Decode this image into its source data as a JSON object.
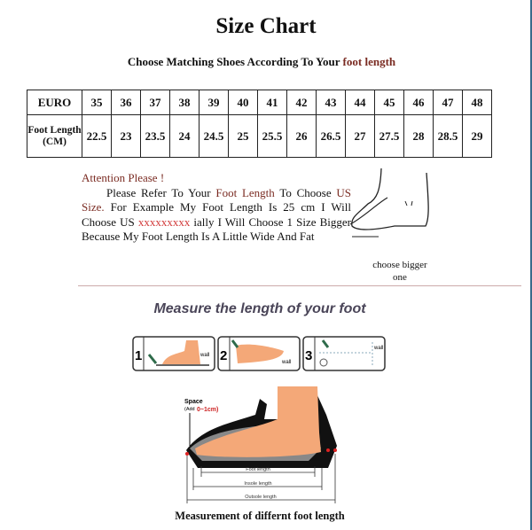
{
  "title": "Size Chart",
  "subtitle": {
    "prefix": "Choose Matching Shoes According To Your ",
    "highlight": "foot length"
  },
  "size_table": {
    "row_headers": [
      "EURO",
      "Foot Length (CM)"
    ],
    "euro": [
      "35",
      "36",
      "37",
      "38",
      "39",
      "40",
      "41",
      "42",
      "43",
      "44",
      "45",
      "46",
      "47",
      "48"
    ],
    "foot_length_cm": [
      "22.5",
      "23",
      "23.5",
      "24",
      "24.5",
      "25",
      "25.5",
      "26",
      "26.5",
      "27",
      "27.5",
      "28",
      "28.5",
      "29"
    ]
  },
  "attention": {
    "heading": "Attention Please !",
    "p1": "Please Refer To Your ",
    "p1_hl": "Foot Length",
    "p2": " To Choose ",
    "p2_hl": "US Size.",
    "p3": " For Example My Foot Length Is 25 cm I Will Choose US ",
    "p3_red": "xxxxxxxxx",
    "p4": " ially I Will Choose 1 Size Bigger Because My Foot Length Is A Little Wide And Fat"
  },
  "choose_bigger": "choose bigger one",
  "measure_title": "Measure the length of your foot",
  "steps": [
    {
      "num": "1",
      "label": "wall"
    },
    {
      "num": "2",
      "label": "wall"
    },
    {
      "num": "3",
      "label": "wall"
    }
  ],
  "diagram": {
    "space_label": "Space",
    "add_label": "(Add",
    "add_value": "0~1cm)",
    "foot_length": "Foot length",
    "insole_length": "Insole length",
    "outsole_length": "Outsole length"
  },
  "caption": "Measurement of differnt foot length",
  "colors": {
    "highlight": "#7a2b22",
    "red": "#d23a3a",
    "skin": "#f4a878",
    "title_purple": "#4a4558"
  }
}
